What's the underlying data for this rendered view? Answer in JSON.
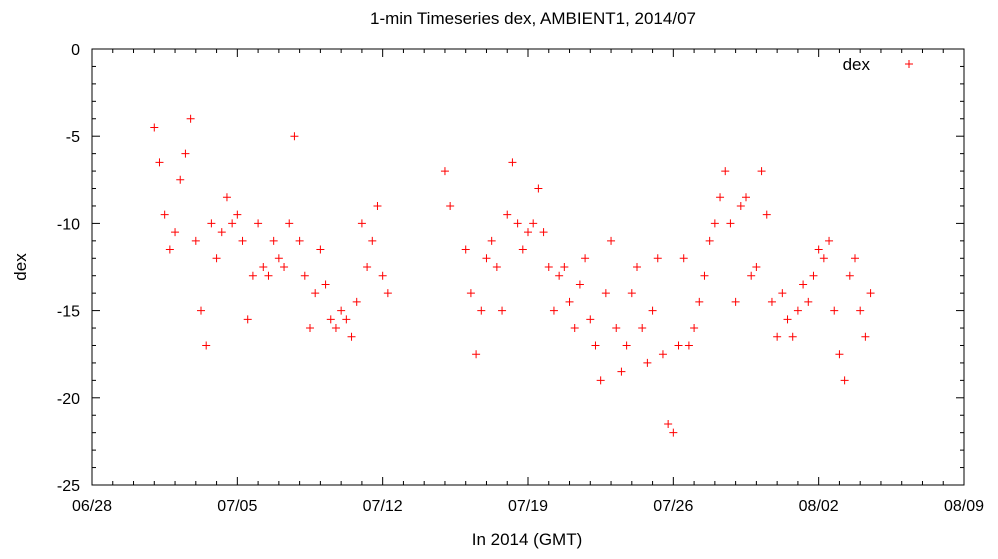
{
  "chart_data": {
    "type": "scatter",
    "title": "1-min Timeseries dex, AMBIENT1, 2014/07",
    "xlabel": "In 2014 (GMT)",
    "ylabel": "dex",
    "x_axis": {
      "type": "date",
      "range": [
        "2014-06-28",
        "2014-08-09"
      ],
      "tick_labels": [
        "06/28",
        "07/05",
        "07/12",
        "07/19",
        "07/26",
        "08/02",
        "08/09"
      ],
      "tick_dates": [
        "2014-06-28",
        "2014-07-05",
        "2014-07-12",
        "2014-07-19",
        "2014-07-26",
        "2014-08-02",
        "2014-08-09"
      ],
      "minor_ticks_per_interval": 7
    },
    "y_axis": {
      "range": [
        -25,
        0
      ],
      "tick_values": [
        0,
        -5,
        -10,
        -15,
        -20,
        -25
      ],
      "tick_labels": [
        "0",
        "-5",
        "-10",
        "-15",
        "-20",
        "-25"
      ],
      "minor_ticks_per_interval": 5
    },
    "grid": false,
    "legend": {
      "position": "top-right"
    },
    "series": [
      {
        "name": "dex",
        "color": "#ff0000",
        "marker": "plus",
        "points": [
          [
            "2014-07-01T00:00",
            -4.5
          ],
          [
            "2014-07-01T06:00",
            -6.5
          ],
          [
            "2014-07-01T12:00",
            -9.5
          ],
          [
            "2014-07-01T18:00",
            -11.5
          ],
          [
            "2014-07-02T00:00",
            -10.5
          ],
          [
            "2014-07-02T06:00",
            -7.5
          ],
          [
            "2014-07-02T12:00",
            -6.0
          ],
          [
            "2014-07-02T18:00",
            -4.0
          ],
          [
            "2014-07-03T00:00",
            -11.0
          ],
          [
            "2014-07-03T06:00",
            -15.0
          ],
          [
            "2014-07-03T12:00",
            -17.0
          ],
          [
            "2014-07-03T18:00",
            -10.0
          ],
          [
            "2014-07-04T00:00",
            -12.0
          ],
          [
            "2014-07-04T06:00",
            -10.5
          ],
          [
            "2014-07-04T12:00",
            -8.5
          ],
          [
            "2014-07-04T18:00",
            -10.0
          ],
          [
            "2014-07-05T00:00",
            -9.5
          ],
          [
            "2014-07-05T06:00",
            -11.0
          ],
          [
            "2014-07-05T12:00",
            -15.5
          ],
          [
            "2014-07-05T18:00",
            -13.0
          ],
          [
            "2014-07-06T00:00",
            -10.0
          ],
          [
            "2014-07-06T06:00",
            -12.5
          ],
          [
            "2014-07-06T12:00",
            -13.0
          ],
          [
            "2014-07-06T18:00",
            -11.0
          ],
          [
            "2014-07-07T00:00",
            -12.0
          ],
          [
            "2014-07-07T06:00",
            -12.5
          ],
          [
            "2014-07-07T12:00",
            -10.0
          ],
          [
            "2014-07-07T18:00",
            -5.0
          ],
          [
            "2014-07-08T00:00",
            -11.0
          ],
          [
            "2014-07-08T06:00",
            -13.0
          ],
          [
            "2014-07-08T12:00",
            -16.0
          ],
          [
            "2014-07-08T18:00",
            -14.0
          ],
          [
            "2014-07-09T00:00",
            -11.5
          ],
          [
            "2014-07-09T06:00",
            -13.5
          ],
          [
            "2014-07-09T12:00",
            -15.5
          ],
          [
            "2014-07-09T18:00",
            -16.0
          ],
          [
            "2014-07-10T00:00",
            -15.0
          ],
          [
            "2014-07-10T06:00",
            -15.5
          ],
          [
            "2014-07-10T12:00",
            -16.5
          ],
          [
            "2014-07-10T18:00",
            -14.5
          ],
          [
            "2014-07-11T00:00",
            -10.0
          ],
          [
            "2014-07-11T06:00",
            -12.5
          ],
          [
            "2014-07-11T12:00",
            -11.0
          ],
          [
            "2014-07-11T18:00",
            -9.0
          ],
          [
            "2014-07-12T00:00",
            -13.0
          ],
          [
            "2014-07-12T06:00",
            -14.0
          ],
          [
            "2014-07-15T00:00",
            -7.0
          ],
          [
            "2014-07-15T06:00",
            -9.0
          ],
          [
            "2014-07-16T00:00",
            -11.5
          ],
          [
            "2014-07-16T06:00",
            -14.0
          ],
          [
            "2014-07-16T12:00",
            -17.5
          ],
          [
            "2014-07-16T18:00",
            -15.0
          ],
          [
            "2014-07-17T00:00",
            -12.0
          ],
          [
            "2014-07-17T06:00",
            -11.0
          ],
          [
            "2014-07-17T12:00",
            -12.5
          ],
          [
            "2014-07-17T18:00",
            -15.0
          ],
          [
            "2014-07-18T00:00",
            -9.5
          ],
          [
            "2014-07-18T06:00",
            -6.5
          ],
          [
            "2014-07-18T12:00",
            -10.0
          ],
          [
            "2014-07-18T18:00",
            -11.5
          ],
          [
            "2014-07-19T00:00",
            -10.5
          ],
          [
            "2014-07-19T06:00",
            -10.0
          ],
          [
            "2014-07-19T12:00",
            -8.0
          ],
          [
            "2014-07-19T18:00",
            -10.5
          ],
          [
            "2014-07-20T00:00",
            -12.5
          ],
          [
            "2014-07-20T06:00",
            -15.0
          ],
          [
            "2014-07-20T12:00",
            -13.0
          ],
          [
            "2014-07-20T18:00",
            -12.5
          ],
          [
            "2014-07-21T00:00",
            -14.5
          ],
          [
            "2014-07-21T06:00",
            -16.0
          ],
          [
            "2014-07-21T12:00",
            -13.5
          ],
          [
            "2014-07-21T18:00",
            -12.0
          ],
          [
            "2014-07-22T00:00",
            -15.5
          ],
          [
            "2014-07-22T06:00",
            -17.0
          ],
          [
            "2014-07-22T12:00",
            -19.0
          ],
          [
            "2014-07-22T18:00",
            -14.0
          ],
          [
            "2014-07-23T00:00",
            -11.0
          ],
          [
            "2014-07-23T06:00",
            -16.0
          ],
          [
            "2014-07-23T12:00",
            -18.5
          ],
          [
            "2014-07-23T18:00",
            -17.0
          ],
          [
            "2014-07-24T00:00",
            -14.0
          ],
          [
            "2014-07-24T06:00",
            -12.5
          ],
          [
            "2014-07-24T12:00",
            -16.0
          ],
          [
            "2014-07-24T18:00",
            -18.0
          ],
          [
            "2014-07-25T00:00",
            -15.0
          ],
          [
            "2014-07-25T06:00",
            -12.0
          ],
          [
            "2014-07-25T12:00",
            -17.5
          ],
          [
            "2014-07-25T18:00",
            -21.5
          ],
          [
            "2014-07-26T00:00",
            -22.0
          ],
          [
            "2014-07-26T06:00",
            -17.0
          ],
          [
            "2014-07-26T12:00",
            -12.0
          ],
          [
            "2014-07-26T18:00",
            -17.0
          ],
          [
            "2014-07-27T00:00",
            -16.0
          ],
          [
            "2014-07-27T06:00",
            -14.5
          ],
          [
            "2014-07-27T12:00",
            -13.0
          ],
          [
            "2014-07-27T18:00",
            -11.0
          ],
          [
            "2014-07-28T00:00",
            -10.0
          ],
          [
            "2014-07-28T06:00",
            -8.5
          ],
          [
            "2014-07-28T12:00",
            -7.0
          ],
          [
            "2014-07-28T18:00",
            -10.0
          ],
          [
            "2014-07-29T00:00",
            -14.5
          ],
          [
            "2014-07-29T06:00",
            -9.0
          ],
          [
            "2014-07-29T12:00",
            -8.5
          ],
          [
            "2014-07-29T18:00",
            -13.0
          ],
          [
            "2014-07-30T00:00",
            -12.5
          ],
          [
            "2014-07-30T06:00",
            -7.0
          ],
          [
            "2014-07-30T12:00",
            -9.5
          ],
          [
            "2014-07-30T18:00",
            -14.5
          ],
          [
            "2014-07-31T00:00",
            -16.5
          ],
          [
            "2014-07-31T06:00",
            -14.0
          ],
          [
            "2014-07-31T12:00",
            -15.5
          ],
          [
            "2014-07-31T18:00",
            -16.5
          ],
          [
            "2014-08-01T00:00",
            -15.0
          ],
          [
            "2014-08-01T06:00",
            -13.5
          ],
          [
            "2014-08-01T12:00",
            -14.5
          ],
          [
            "2014-08-01T18:00",
            -13.0
          ],
          [
            "2014-08-02T00:00",
            -11.5
          ],
          [
            "2014-08-02T06:00",
            -12.0
          ],
          [
            "2014-08-02T12:00",
            -11.0
          ],
          [
            "2014-08-02T18:00",
            -15.0
          ],
          [
            "2014-08-03T00:00",
            -17.5
          ],
          [
            "2014-08-03T06:00",
            -19.0
          ],
          [
            "2014-08-03T12:00",
            -13.0
          ],
          [
            "2014-08-03T18:00",
            -12.0
          ],
          [
            "2014-08-04T00:00",
            -15.0
          ],
          [
            "2014-08-04T06:00",
            -16.5
          ],
          [
            "2014-08-04T12:00",
            -14.0
          ]
        ]
      }
    ]
  }
}
